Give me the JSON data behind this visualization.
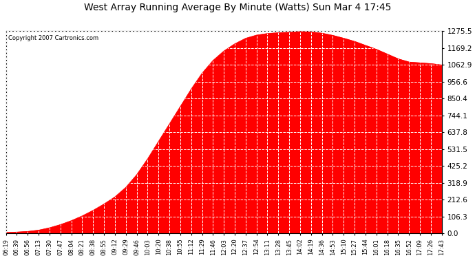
{
  "title": "West Array Running Average By Minute (Watts) Sun Mar 4 17:45",
  "copyright": "Copyright 2007 Cartronics.com",
  "fill_color": "#FF0000",
  "background_color": "#FFFFFF",
  "grid_color": "#C0C0C0",
  "yticks": [
    0.0,
    106.3,
    212.6,
    318.9,
    425.2,
    531.5,
    637.8,
    744.1,
    850.4,
    956.6,
    1062.9,
    1169.2,
    1275.5
  ],
  "ymax": 1275.5,
  "xtick_labels": [
    "06:19",
    "06:39",
    "06:56",
    "07:13",
    "07:30",
    "07:47",
    "08:04",
    "08:21",
    "08:38",
    "08:55",
    "09:12",
    "09:29",
    "09:46",
    "10:03",
    "10:20",
    "10:38",
    "10:55",
    "11:12",
    "11:29",
    "11:46",
    "12:03",
    "12:20",
    "12:37",
    "12:54",
    "13:11",
    "13:28",
    "13:45",
    "14:02",
    "14:19",
    "14:36",
    "14:53",
    "15:10",
    "15:27",
    "15:44",
    "16:01",
    "16:18",
    "16:35",
    "16:52",
    "17:09",
    "17:26",
    "17:43"
  ],
  "curve_y_values": [
    5,
    8,
    12,
    20,
    35,
    55,
    80,
    110,
    145,
    185,
    230,
    290,
    370,
    470,
    580,
    690,
    800,
    910,
    1010,
    1090,
    1150,
    1195,
    1230,
    1250,
    1260,
    1265,
    1268,
    1272,
    1270,
    1262,
    1248,
    1230,
    1210,
    1185,
    1160,
    1130,
    1100,
    1080,
    1075,
    1070,
    1062
  ]
}
